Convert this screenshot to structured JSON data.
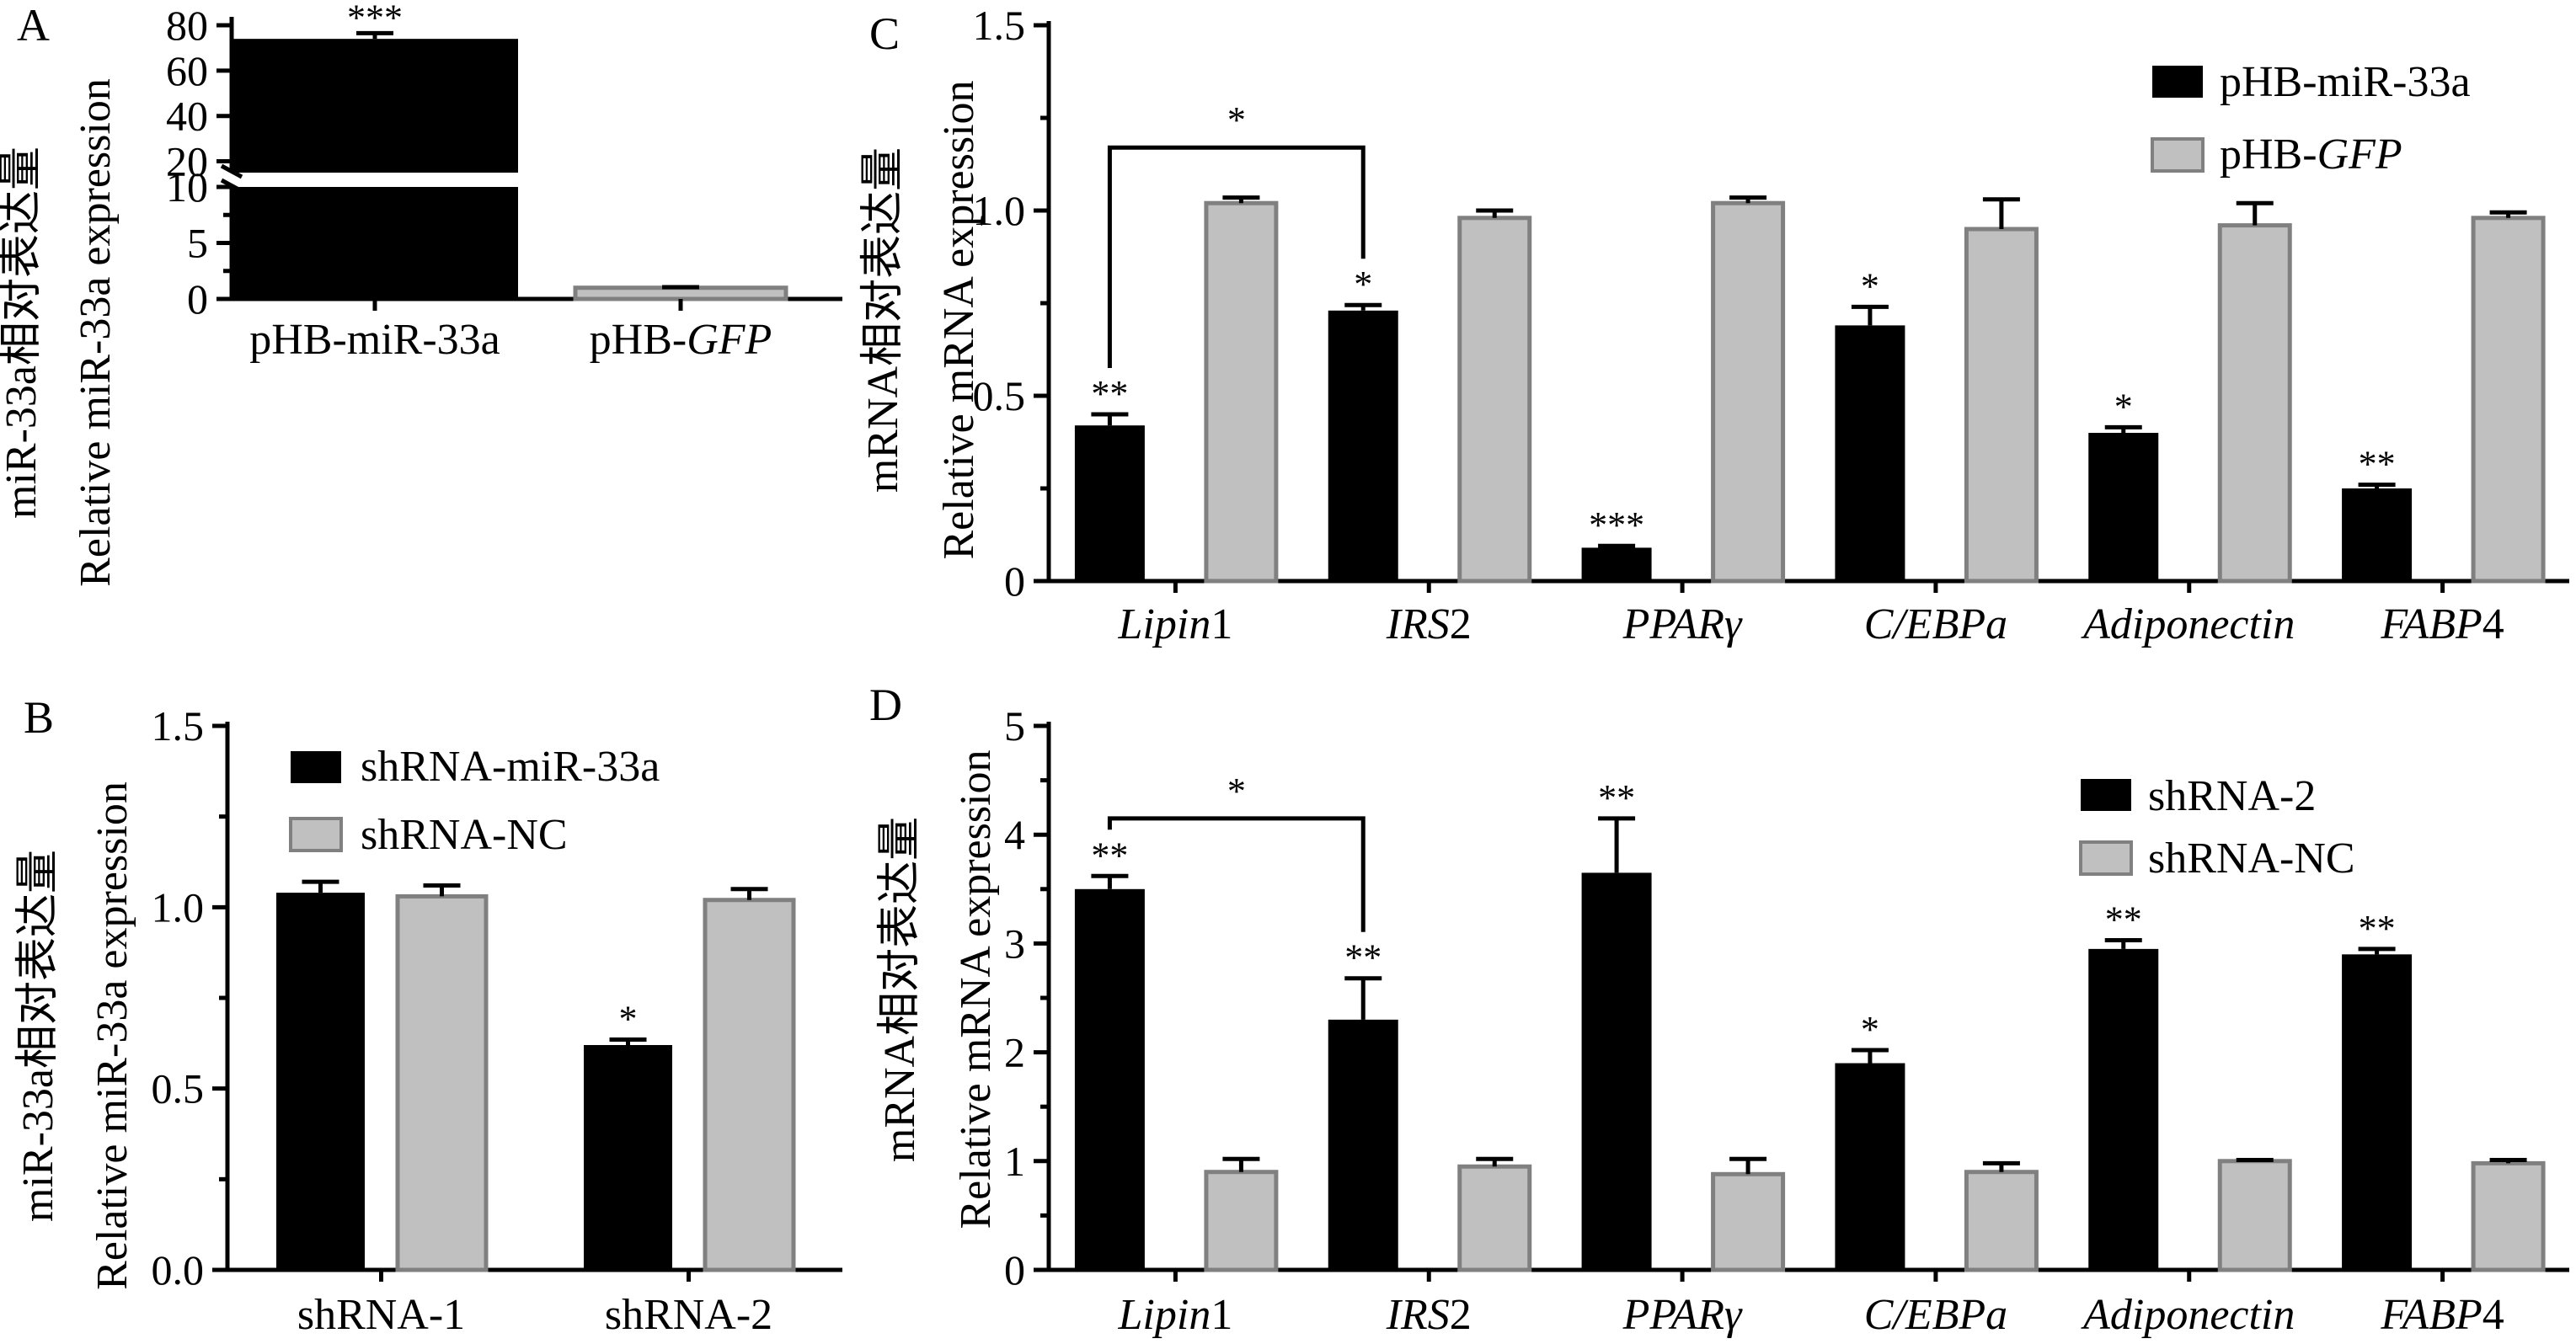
{
  "colors": {
    "black_bar": "#000000",
    "gray_bar": "#c0c0c0",
    "gray_edge": "#808080"
  },
  "panels": {
    "A": {
      "label": "A"
    },
    "B": {
      "label": "B"
    },
    "C": {
      "label": "C"
    },
    "D": {
      "label": "D"
    }
  },
  "chart_data": [
    {
      "id": "A",
      "type": "bar",
      "ylabel_cn": "miR-33a相对表达量",
      "ylabel_en": "Relative miR-33a expression",
      "categories": [
        "pHB-miR-33a",
        "pHB-GFP"
      ],
      "values": [
        74,
        1.0
      ],
      "errors": [
        2.5,
        0.05
      ],
      "significance": [
        "***",
        ""
      ],
      "colors": [
        "black",
        "gray"
      ],
      "axis_break": {
        "lower": [
          0,
          10
        ],
        "upper": [
          15,
          80
        ]
      },
      "yticks": [
        "0",
        "5",
        "10",
        "20",
        "40",
        "60",
        "80"
      ]
    },
    {
      "id": "B",
      "type": "bar",
      "ylabel_cn": "miR-33a相对表达量",
      "ylabel_en": "Relative miR-33a expression",
      "categories": [
        "shRNA-1",
        "shRNA-2"
      ],
      "series": [
        {
          "name": "shRNA-miR-33a",
          "values": [
            1.04,
            0.62
          ],
          "errors": [
            0.03,
            0.015
          ],
          "significance": [
            "",
            "*"
          ]
        },
        {
          "name": "shRNA-NC",
          "values": [
            1.03,
            1.02
          ],
          "errors": [
            0.03,
            0.03
          ],
          "significance": [
            "",
            ""
          ]
        }
      ],
      "ylim": [
        0,
        1.5
      ],
      "yticks": [
        "0.0",
        "0.5",
        "1.0",
        "1.5"
      ]
    },
    {
      "id": "C",
      "type": "bar",
      "ylabel_cn": "mRNA相对表达量",
      "ylabel_en": "Relative mRNA expression",
      "categories": [
        {
          "it": "Lipin",
          "rm": "1"
        },
        {
          "it": "IRS",
          "rm": "2"
        },
        {
          "it": "PPARγ",
          "rm": ""
        },
        {
          "it": "C/EBPa",
          "rm": ""
        },
        {
          "it": "Adiponectin",
          "rm": ""
        },
        {
          "it": "FABP",
          "rm": "4"
        }
      ],
      "series": [
        {
          "name": "pHB-miR-33a",
          "values": [
            0.42,
            0.73,
            0.09,
            0.69,
            0.4,
            0.25
          ],
          "errors": [
            0.03,
            0.015,
            0.005,
            0.05,
            0.015,
            0.01
          ],
          "significance": [
            "**",
            "*",
            "***",
            "*",
            "*",
            "**"
          ]
        },
        {
          "name": "pHB-GFP",
          "name_prefix": "pHB-",
          "name_italic": "GFP",
          "values": [
            1.02,
            0.98,
            1.02,
            0.95,
            0.96,
            0.98
          ],
          "errors": [
            0.015,
            0.02,
            0.015,
            0.08,
            0.06,
            0.015
          ],
          "significance": [
            "",
            "",
            "",
            "",
            "",
            ""
          ]
        }
      ],
      "ylim": [
        0,
        1.5
      ],
      "yticks": [
        "0",
        "0.5",
        "1.0",
        "1.5"
      ],
      "bracket": {
        "from": 0,
        "to": 1,
        "label": "*",
        "y": 1.17
      }
    },
    {
      "id": "D",
      "type": "bar",
      "ylabel_cn": "mRNA相对表达量",
      "ylabel_en": "Relative mRNA expression",
      "categories": [
        {
          "it": "Lipin",
          "rm": "1"
        },
        {
          "it": "IRS",
          "rm": "2"
        },
        {
          "it": "PPARγ",
          "rm": ""
        },
        {
          "it": "C/EBPa",
          "rm": ""
        },
        {
          "it": "Adiponectin",
          "rm": ""
        },
        {
          "it": "FABP",
          "rm": "4"
        }
      ],
      "series": [
        {
          "name": "shRNA-2",
          "values": [
            3.5,
            2.3,
            3.65,
            1.9,
            2.95,
            2.9
          ],
          "errors": [
            0.12,
            0.38,
            0.5,
            0.12,
            0.08,
            0.05
          ],
          "significance": [
            "**",
            "**",
            "**",
            "*",
            "**",
            "**"
          ]
        },
        {
          "name": "shRNA-NC",
          "values": [
            0.9,
            0.95,
            0.88,
            0.9,
            1.0,
            0.98
          ],
          "errors": [
            0.12,
            0.07,
            0.14,
            0.08,
            0.01,
            0.03
          ],
          "significance": [
            "",
            "",
            "",
            "",
            "",
            ""
          ]
        }
      ],
      "ylim": [
        0,
        5
      ],
      "yticks": [
        "0",
        "1",
        "2",
        "3",
        "4",
        "5"
      ],
      "bracket": {
        "from": 0,
        "to": 1,
        "label": "*",
        "y": 4.15
      }
    }
  ]
}
